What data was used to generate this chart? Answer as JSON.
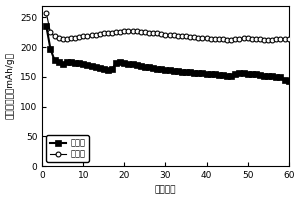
{
  "title": "",
  "xlabel": "循环圈数",
  "ylabel": "放电比容量（mAh/g）",
  "xlim": [
    0,
    60
  ],
  "ylim": [
    0,
    270
  ],
  "yticks": [
    0,
    50,
    100,
    150,
    200,
    250
  ],
  "xticks": [
    0,
    10,
    20,
    30,
    40,
    50,
    60
  ],
  "legend_labels": [
    "改性前",
    "改性后"
  ],
  "before_x": [
    1,
    2,
    3,
    4,
    5,
    6,
    7,
    8,
    9,
    10,
    11,
    12,
    13,
    14,
    15,
    16,
    17,
    18,
    19,
    20,
    21,
    22,
    23,
    24,
    25,
    26,
    27,
    28,
    29,
    30,
    31,
    32,
    33,
    34,
    35,
    36,
    37,
    38,
    39,
    40,
    41,
    42,
    43,
    44,
    45,
    46,
    47,
    48,
    49,
    50,
    51,
    52,
    53,
    54,
    55,
    56,
    57,
    58,
    59,
    60
  ],
  "before_y": [
    235,
    197,
    178,
    175,
    172,
    175,
    175,
    174,
    173,
    172,
    170,
    168,
    166,
    165,
    163,
    162,
    163,
    173,
    175,
    174,
    172,
    172,
    170,
    168,
    167,
    166,
    165,
    164,
    163,
    162,
    161,
    160,
    160,
    159,
    159,
    158,
    157,
    157,
    156,
    155,
    155,
    154,
    153,
    153,
    152,
    152,
    155,
    156,
    156,
    155,
    154,
    154,
    153,
    152,
    152,
    151,
    150,
    149,
    145,
    143
  ],
  "after_x": [
    1,
    2,
    3,
    4,
    5,
    6,
    7,
    8,
    9,
    10,
    11,
    12,
    13,
    14,
    15,
    16,
    17,
    18,
    19,
    20,
    21,
    22,
    23,
    24,
    25,
    26,
    27,
    28,
    29,
    30,
    31,
    32,
    33,
    34,
    35,
    36,
    37,
    38,
    39,
    40,
    41,
    42,
    43,
    44,
    45,
    46,
    47,
    48,
    49,
    50,
    51,
    52,
    53,
    54,
    55,
    56,
    57,
    58,
    59,
    60
  ],
  "after_y": [
    257,
    225,
    218,
    215,
    213,
    214,
    215,
    216,
    217,
    218,
    219,
    220,
    221,
    222,
    223,
    223,
    224,
    225,
    226,
    227,
    228,
    228,
    227,
    226,
    225,
    224,
    224,
    223,
    222,
    221,
    220,
    220,
    219,
    219,
    218,
    217,
    217,
    216,
    215,
    215,
    214,
    214,
    213,
    213,
    212,
    212,
    213,
    214,
    215,
    215,
    214,
    213,
    213,
    212,
    212,
    212,
    213,
    214,
    214,
    213
  ],
  "line_color": "#000000",
  "bg_color": "#ffffff",
  "marker_before": "s",
  "marker_after": "o",
  "markersize_before": 4.0,
  "markersize_after": 3.5,
  "linewidth_before": 1.5,
  "linewidth_after": 0.8
}
